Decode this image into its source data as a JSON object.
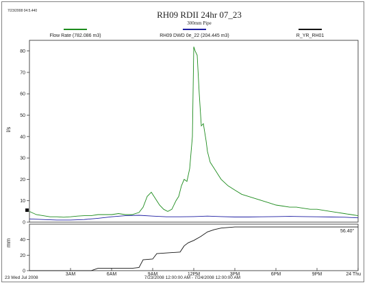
{
  "header": {
    "corner_text": "7/23/2008 04:5.440",
    "title": "RH09 RDII 24hr 07_23",
    "subtitle": "300mm Pipe"
  },
  "legend": [
    {
      "label": "Flow Rate (782.086 m3)",
      "color": "#1a8a1a"
    },
    {
      "label": "RH09 DWD 0e_22 (204.445 m3)",
      "color": "#1a1aa0"
    },
    {
      "label": "R_YR_RH01",
      "color": "#111111"
    }
  ],
  "annotations": {
    "rain_total": "56.40\"",
    "date_left": "23 Wed Jul 2008",
    "date_range": "7/23/2008 12:00:00 AM - 7/24/2008 12:00:00 AM"
  },
  "chart_data": [
    {
      "type": "line",
      "ylabel": "l/s",
      "ylim": [
        0,
        85
      ],
      "yticks": [
        "0",
        "10",
        "20",
        "30",
        "40",
        "50",
        "60",
        "70",
        "80"
      ],
      "xlim": [
        0,
        24
      ],
      "series": [
        {
          "name": "Flow Rate (782.086 m3)",
          "color": "#1a8a1a",
          "x": [
            0,
            0.5,
            1,
            1.5,
            2,
            2.5,
            3,
            3.5,
            4,
            4.5,
            5,
            5.5,
            6,
            6.5,
            7,
            7.5,
            8,
            8.3,
            8.6,
            8.9,
            9.2,
            9.5,
            9.8,
            10.1,
            10.4,
            10.7,
            10.9,
            11.1,
            11.3,
            11.5,
            11.7,
            11.9,
            12.0,
            12.1,
            12.25,
            12.4,
            12.55,
            12.7,
            12.8,
            12.9,
            13.0,
            13.2,
            13.5,
            13.8,
            14,
            14.5,
            15,
            15.5,
            16,
            16.5,
            17,
            17.5,
            18,
            18.5,
            19,
            19.5,
            20,
            20.5,
            21,
            21.5,
            22,
            22.5,
            23,
            23.5,
            24
          ],
          "values": [
            5,
            3.5,
            3,
            2.5,
            2.5,
            2.3,
            2.5,
            2.8,
            3,
            3,
            3.5,
            3.5,
            3.5,
            4,
            3.5,
            3.5,
            4.5,
            7,
            12,
            14,
            11,
            8,
            6,
            5,
            6,
            10,
            12,
            17,
            20,
            19,
            25,
            40,
            82,
            80,
            78,
            60,
            45,
            46,
            42,
            38,
            33,
            28,
            25,
            22,
            20,
            17,
            15,
            13,
            12,
            11,
            10,
            9,
            8,
            7.5,
            7,
            7,
            6.5,
            6,
            6,
            5.5,
            5,
            4.5,
            4,
            3.5,
            3
          ]
        },
        {
          "name": "RH09 DWD 0e_22 (204.445 m3)",
          "color": "#1a1aa0",
          "x": [
            0,
            1,
            2,
            3,
            4,
            5,
            6,
            7,
            8,
            9,
            10,
            11,
            12,
            13,
            14,
            15,
            16,
            17,
            18,
            19,
            20,
            21,
            22,
            23,
            24
          ],
          "values": [
            1.5,
            1.2,
            1.0,
            1.0,
            1.2,
            1.8,
            2.5,
            3.0,
            3.2,
            2.8,
            2.5,
            2.5,
            2.6,
            2.8,
            2.6,
            2.4,
            2.4,
            2.5,
            2.6,
            2.7,
            2.6,
            2.5,
            2.4,
            2.3,
            2.0
          ]
        }
      ]
    },
    {
      "type": "line",
      "ylabel": "mm",
      "ylim": [
        0,
        60
      ],
      "yticks": [
        "0",
        "20",
        "40"
      ],
      "xlim": [
        0,
        24
      ],
      "xticks": [
        "3AM",
        "6AM",
        "9AM",
        "12PM",
        "3PM",
        "6PM",
        "9PM",
        "24 Thu"
      ],
      "series": [
        {
          "name": "R_YR_RH01",
          "color": "#111111",
          "x": [
            0,
            4.5,
            5.0,
            7.5,
            8.0,
            8.3,
            9.0,
            9.3,
            11.0,
            11.3,
            11.6,
            12.0,
            12.5,
            13.0,
            13.5,
            14.0,
            15.0,
            24
          ],
          "values": [
            0,
            0,
            3,
            3,
            4,
            14,
            15,
            22,
            24,
            32,
            36,
            39,
            44,
            50,
            53,
            55,
            56.4,
            56.4
          ]
        }
      ]
    }
  ]
}
